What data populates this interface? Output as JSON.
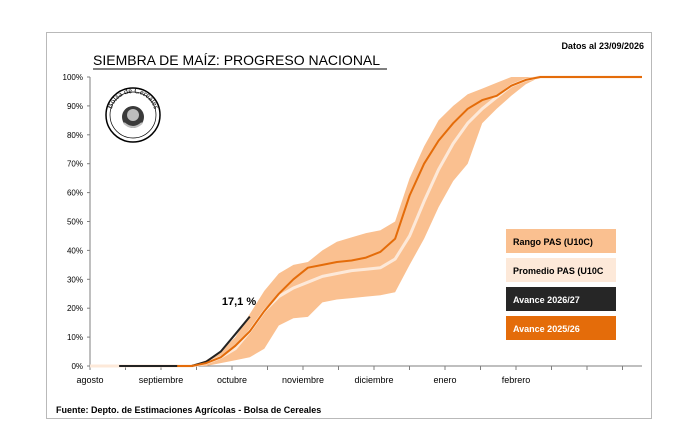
{
  "chart_data": {
    "type": "line",
    "title": "SIEMBRA DE MAÍZ: PROGRESO NACIONAL",
    "date_label": "Datos al 23/09/2026",
    "source": "Fuente: Depto. de Estimaciones Agrícolas - Bolsa de Cereales",
    "logo_text": "Bolsa de Cereales",
    "xlabel": "",
    "ylabel": "",
    "ylim": [
      0,
      100
    ],
    "y_ticks": [
      "0%",
      "10%",
      "20%",
      "30%",
      "40%",
      "50%",
      "60%",
      "70%",
      "80%",
      "90%",
      "100%"
    ],
    "x_ticks": [
      "agosto",
      "septiembre",
      "octubre",
      "noviembre",
      "diciembre",
      "enero",
      "febrero"
    ],
    "grid": false,
    "legend_position": "right",
    "annotation": "17,1 %",
    "series": [
      {
        "name": "Rango PAS (U10C)",
        "kind": "band",
        "color": "#fac090",
        "x": [
          0,
          1,
          2,
          3,
          4,
          5,
          6,
          7,
          8,
          9,
          10,
          11,
          12,
          13,
          14,
          15,
          16,
          17,
          18,
          19,
          20,
          21,
          22,
          23,
          24,
          25,
          26,
          27,
          28,
          29,
          30,
          31,
          32,
          33,
          34,
          35,
          36,
          37,
          38
        ],
        "low": [
          0,
          0,
          0,
          0,
          0,
          0,
          0,
          0,
          0,
          1,
          2,
          3,
          6,
          14,
          16.5,
          17,
          22,
          23,
          23.5,
          24,
          24.5,
          25.5,
          35,
          44,
          55,
          64,
          70,
          84,
          89,
          93.5,
          97.5,
          100,
          100,
          100,
          100,
          100,
          100,
          100,
          100
        ],
        "high": [
          0,
          0,
          0,
          0,
          0,
          0,
          0,
          0,
          2,
          5,
          10,
          18,
          26,
          32,
          35,
          36,
          40,
          43,
          44.5,
          46,
          47,
          50,
          65,
          76,
          85,
          90,
          94,
          96,
          98,
          100,
          100,
          100,
          100,
          100,
          100,
          100,
          100,
          100,
          100
        ]
      },
      {
        "name": "Promedio PAS (U10C)",
        "kind": "line",
        "color": "#fde9d9",
        "x": [
          0,
          1,
          2,
          3,
          4,
          5,
          6,
          7,
          8,
          9,
          10,
          11,
          12,
          13,
          14,
          15,
          16,
          17,
          18,
          19,
          20,
          21,
          22,
          23,
          24,
          25,
          26,
          27,
          28,
          29,
          30,
          31,
          32,
          33,
          34,
          35,
          36,
          37,
          38
        ],
        "y": [
          0,
          0,
          0,
          0,
          0,
          0,
          0,
          0,
          1,
          3,
          6,
          12,
          19,
          24,
          27,
          29,
          31,
          32,
          33,
          33.5,
          34,
          37,
          45,
          57,
          68,
          77,
          84,
          89,
          93,
          97,
          99,
          100,
          100,
          100,
          100,
          100,
          100,
          100,
          100
        ]
      },
      {
        "name": "Avance 2026/27",
        "kind": "line",
        "color": "#222222",
        "x": [
          2,
          3,
          4,
          5,
          6,
          7,
          8,
          9,
          10,
          11
        ],
        "y": [
          0,
          0,
          0,
          0,
          0,
          0,
          1.5,
          5,
          11,
          17.1
        ]
      },
      {
        "name": "Avance 2025/26",
        "kind": "line",
        "color": "#e46c0a",
        "x": [
          6,
          7,
          8,
          9,
          10,
          11,
          12,
          13,
          14,
          15,
          16,
          17,
          18,
          19,
          20,
          21,
          22,
          23,
          24,
          25,
          26,
          27,
          28,
          29,
          30,
          31,
          32,
          33,
          34,
          35,
          36,
          37,
          38
        ],
        "y": [
          0,
          0,
          1,
          3,
          7,
          12,
          19,
          25,
          30,
          34,
          35,
          36,
          36.5,
          37.5,
          39.5,
          44,
          59,
          70,
          78,
          84,
          89,
          92,
          93.5,
          97,
          99,
          100,
          100,
          100,
          100,
          100,
          100,
          100,
          100
        ]
      }
    ],
    "legend": [
      {
        "label": "Rango PAS (U10C)",
        "bg": "#fac090",
        "fg": "#000000"
      },
      {
        "label": "Promedio PAS (U10C",
        "bg": "#fde9d9",
        "fg": "#000000"
      },
      {
        "label": "Avance 2026/27",
        "bg": "#262626",
        "fg": "#ffffff"
      },
      {
        "label": "Avance 2025/26",
        "bg": "#e46c0a",
        "fg": "#ffffff"
      }
    ]
  }
}
